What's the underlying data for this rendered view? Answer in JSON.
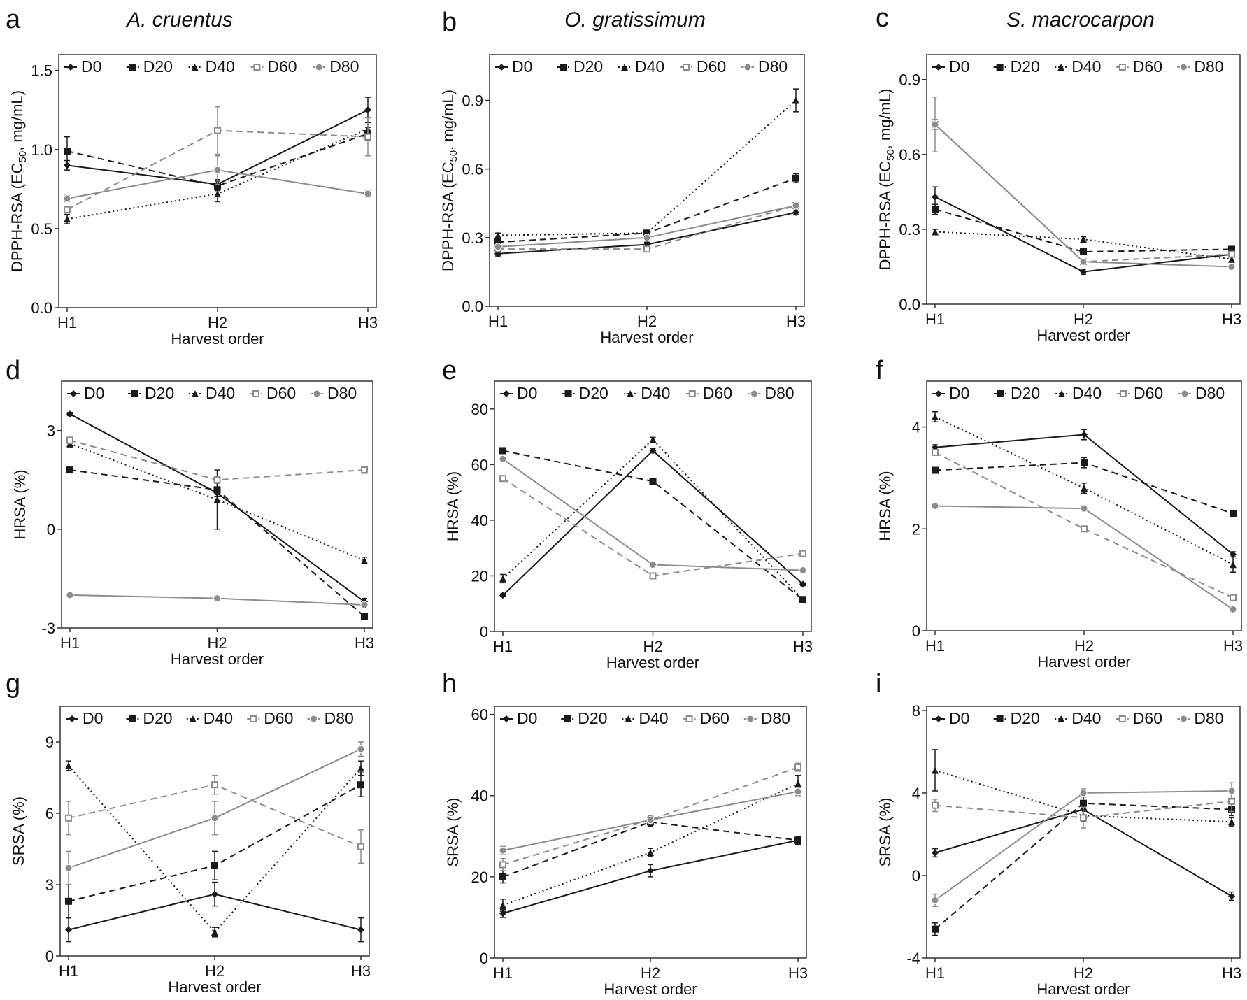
{
  "figure": {
    "species": [
      "A. cruentus",
      "O. gratissimum",
      "S. macrocarpon"
    ]
  },
  "chart_data": [
    {
      "letter": "a",
      "type": "line",
      "title": "A. cruentus",
      "xlabel": "Harvest order",
      "ylabel": "DPPH-RSA (EC",
      "ylabel_sub": "50",
      "ylabel_post": ", mg/mL)",
      "categories": [
        "H1",
        "H2",
        "H3"
      ],
      "ylim": [
        0,
        1.6
      ],
      "yticks": [
        "0.0",
        "0.5",
        "1.0",
        "1.5"
      ],
      "ytick_values": [
        0,
        0.5,
        1.0,
        1.5
      ],
      "series": [
        {
          "name": "D0",
          "values": [
            0.9,
            0.78,
            1.25
          ],
          "errors": [
            0.03,
            0.03,
            0.08
          ]
        },
        {
          "name": "D20",
          "values": [
            0.99,
            0.77,
            1.1
          ],
          "errors": [
            0.09,
            0.03,
            0.04
          ]
        },
        {
          "name": "D40",
          "values": [
            0.56,
            0.72,
            1.13
          ],
          "errors": [
            0.03,
            0.05,
            0.04
          ]
        },
        {
          "name": "D60",
          "values": [
            0.62,
            1.12,
            1.08
          ],
          "errors": [
            0.02,
            0.15,
            0.12
          ]
        },
        {
          "name": "D80",
          "values": [
            0.69,
            0.87,
            0.72
          ],
          "errors": [
            0.02,
            0.09,
            0.02
          ]
        }
      ]
    },
    {
      "letter": "b",
      "type": "line",
      "title": "O. gratissimum",
      "xlabel": "Harvest order",
      "ylabel": "DPPH-RSA (EC",
      "ylabel_sub": "50",
      "ylabel_post": ", mg/mL)",
      "categories": [
        "H1",
        "H2",
        "H3"
      ],
      "ylim": [
        0,
        1.1
      ],
      "yticks": [
        "0.0",
        "0.3",
        "0.6",
        "0.9"
      ],
      "ytick_values": [
        0,
        0.3,
        0.6,
        0.9
      ],
      "series": [
        {
          "name": "D0",
          "values": [
            0.23,
            0.27,
            0.41
          ],
          "errors": [
            0.01,
            0.01,
            0.01
          ]
        },
        {
          "name": "D20",
          "values": [
            0.28,
            0.32,
            0.56
          ],
          "errors": [
            0.01,
            0.01,
            0.02
          ]
        },
        {
          "name": "D40",
          "values": [
            0.31,
            0.32,
            0.9
          ],
          "errors": [
            0.01,
            0.01,
            0.05
          ]
        },
        {
          "name": "D60",
          "values": [
            0.25,
            0.25,
            0.44
          ],
          "errors": [
            0.01,
            0.01,
            0.01
          ]
        },
        {
          "name": "D80",
          "values": [
            0.26,
            0.3,
            0.44
          ],
          "errors": [
            0.01,
            0.01,
            0.01
          ]
        }
      ]
    },
    {
      "letter": "c",
      "type": "line",
      "title": "S. macrocarpon",
      "xlabel": "Harvest order",
      "ylabel": "DPPH-RSA (EC",
      "ylabel_sub": "50",
      "ylabel_post": ", mg/mL)",
      "categories": [
        "H1",
        "H2",
        "H3"
      ],
      "ylim": [
        0,
        1.0
      ],
      "yticks": [
        "0.0",
        "0.3",
        "0.6",
        "0.9"
      ],
      "ytick_values": [
        0,
        0.3,
        0.6,
        0.9
      ],
      "series": [
        {
          "name": "D0",
          "values": [
            0.43,
            0.13,
            0.2
          ],
          "errors": [
            0.04,
            0.01,
            0.01
          ]
        },
        {
          "name": "D20",
          "values": [
            0.38,
            0.21,
            0.22
          ],
          "errors": [
            0.02,
            0.01,
            0.01
          ]
        },
        {
          "name": "D40",
          "values": [
            0.29,
            0.26,
            0.18
          ],
          "errors": [
            0.01,
            0.01,
            0.01
          ]
        },
        {
          "name": "D60",
          "values": [
            0.72,
            0.17,
            0.2
          ],
          "errors": [
            0.11,
            0.01,
            0.01
          ]
        },
        {
          "name": "D80",
          "values": [
            0.72,
            0.17,
            0.15
          ],
          "errors": [
            0.02,
            0.01,
            0.01
          ]
        }
      ]
    },
    {
      "letter": "d",
      "type": "line",
      "xlabel": "Harvest order",
      "ylabel": "HRSA (%)",
      "ylabel_sub": "",
      "ylabel_post": "",
      "categories": [
        "H1",
        "H2",
        "H3"
      ],
      "ylim": [
        -3,
        4.5
      ],
      "yticks": [
        "-3",
        "0",
        "3"
      ],
      "ytick_values": [
        -3,
        0,
        3
      ],
      "series": [
        {
          "name": "D0",
          "values": [
            3.5,
            1.1,
            -2.2
          ],
          "errors": [
            0.05,
            0.3,
            0.1
          ]
        },
        {
          "name": "D20",
          "values": [
            1.8,
            1.2,
            -2.65
          ],
          "errors": [
            0.05,
            0.2,
            0.1
          ]
        },
        {
          "name": "D40",
          "values": [
            2.6,
            0.9,
            -0.95
          ],
          "errors": [
            0.1,
            0.9,
            0.1
          ]
        },
        {
          "name": "D60",
          "values": [
            2.7,
            1.5,
            1.8
          ],
          "errors": [
            0.1,
            0.1,
            0.1
          ]
        },
        {
          "name": "D80",
          "values": [
            -2.0,
            -2.1,
            -2.3
          ],
          "errors": [
            0.05,
            0.05,
            0.05
          ]
        }
      ]
    },
    {
      "letter": "e",
      "type": "line",
      "xlabel": "Harvest order",
      "ylabel": "HRSA (%)",
      "ylabel_sub": "",
      "ylabel_post": "",
      "categories": [
        "H1",
        "H2",
        "H3"
      ],
      "ylim": [
        0,
        90
      ],
      "yticks": [
        "0",
        "20",
        "40",
        "60",
        "80"
      ],
      "ytick_values": [
        0,
        20,
        40,
        60,
        80
      ],
      "series": [
        {
          "name": "D0",
          "values": [
            13,
            65,
            17
          ],
          "errors": [
            0.5,
            0.8,
            0.5
          ]
        },
        {
          "name": "D20",
          "values": [
            65,
            54,
            11.5
          ],
          "errors": [
            0.8,
            0.8,
            0.5
          ]
        },
        {
          "name": "D40",
          "values": [
            19,
            69,
            11.5
          ],
          "errors": [
            1.5,
            0.8,
            0.5
          ]
        },
        {
          "name": "D60",
          "values": [
            55,
            20,
            28
          ],
          "errors": [
            0.8,
            0.5,
            0.8
          ]
        },
        {
          "name": "D80",
          "values": [
            62,
            24,
            22
          ],
          "errors": [
            0.8,
            0.5,
            0.5
          ]
        }
      ]
    },
    {
      "letter": "f",
      "type": "line",
      "xlabel": "Harvest order",
      "ylabel": "HRSA (%)",
      "ylabel_sub": "",
      "ylabel_post": "",
      "categories": [
        "H1",
        "H2",
        "H3"
      ],
      "ylim": [
        0,
        4.9
      ],
      "yticks": [
        "0",
        "2",
        "4"
      ],
      "ytick_values": [
        0,
        2,
        4
      ],
      "series": [
        {
          "name": "D0",
          "values": [
            3.6,
            3.85,
            1.5
          ],
          "errors": [
            0.05,
            0.1,
            0.05
          ]
        },
        {
          "name": "D20",
          "values": [
            3.15,
            3.3,
            2.3
          ],
          "errors": [
            0.05,
            0.1,
            0.05
          ]
        },
        {
          "name": "D40",
          "values": [
            4.2,
            2.8,
            1.3
          ],
          "errors": [
            0.1,
            0.1,
            0.15
          ]
        },
        {
          "name": "D60",
          "values": [
            3.5,
            2.0,
            0.65
          ],
          "errors": [
            0.05,
            0.05,
            0.05
          ]
        },
        {
          "name": "D80",
          "values": [
            2.45,
            2.4,
            0.42
          ],
          "errors": [
            0.05,
            0.05,
            0.05
          ]
        }
      ]
    },
    {
      "letter": "g",
      "type": "line",
      "xlabel": "Harvest order",
      "ylabel": "SRSA (%)",
      "ylabel_sub": "",
      "ylabel_post": "",
      "categories": [
        "H1",
        "H2",
        "H3"
      ],
      "ylim": [
        0,
        10.5
      ],
      "yticks": [
        "0",
        "3",
        "6",
        "9"
      ],
      "ytick_values": [
        0,
        3,
        6,
        9
      ],
      "series": [
        {
          "name": "D0",
          "values": [
            1.1,
            2.6,
            1.1
          ],
          "errors": [
            0.5,
            0.5,
            0.5
          ]
        },
        {
          "name": "D20",
          "values": [
            2.3,
            3.8,
            7.2
          ],
          "errors": [
            0.7,
            0.6,
            0.5
          ]
        },
        {
          "name": "D40",
          "values": [
            8.0,
            1.0,
            7.9
          ],
          "errors": [
            0.2,
            0.2,
            0.3
          ]
        },
        {
          "name": "D60",
          "values": [
            5.8,
            7.2,
            4.6
          ],
          "errors": [
            0.7,
            0.4,
            0.7
          ]
        },
        {
          "name": "D80",
          "values": [
            3.7,
            5.8,
            8.7
          ],
          "errors": [
            0.7,
            0.7,
            0.3
          ]
        }
      ]
    },
    {
      "letter": "h",
      "type": "line",
      "xlabel": "Harvest order",
      "ylabel": "SRSA (%)",
      "ylabel_sub": "",
      "ylabel_post": "",
      "categories": [
        "H1",
        "H2",
        "H3"
      ],
      "ylim": [
        0,
        62
      ],
      "yticks": [
        "0",
        "20",
        "40",
        "60"
      ],
      "ytick_values": [
        0,
        20,
        40,
        60
      ],
      "series": [
        {
          "name": "D0",
          "values": [
            11,
            21.5,
            29
          ],
          "errors": [
            1.0,
            1.5,
            1.0
          ]
        },
        {
          "name": "D20",
          "values": [
            20,
            33.5,
            29
          ],
          "errors": [
            1.5,
            1.0,
            1.0
          ]
        },
        {
          "name": "D40",
          "values": [
            13,
            26,
            43
          ],
          "errors": [
            1.5,
            1.0,
            2.0
          ]
        },
        {
          "name": "D60",
          "values": [
            23,
            34,
            47
          ],
          "errors": [
            1.5,
            1.0,
            1.0
          ]
        },
        {
          "name": "D80",
          "values": [
            26.5,
            34,
            41
          ],
          "errors": [
            1.0,
            1.0,
            1.0
          ]
        }
      ]
    },
    {
      "letter": "i",
      "type": "line",
      "xlabel": "Harvest order",
      "ylabel": "SRSA (%)",
      "ylabel_sub": "",
      "ylabel_post": "",
      "categories": [
        "H1",
        "H2",
        "H3"
      ],
      "ylim": [
        -4,
        8.2
      ],
      "yticks": [
        "-4",
        "0",
        "4",
        "8"
      ],
      "ytick_values": [
        -4,
        0,
        4,
        8
      ],
      "series": [
        {
          "name": "D0",
          "values": [
            1.1,
            3.2,
            -1.0
          ],
          "errors": [
            0.2,
            0.3,
            0.2
          ]
        },
        {
          "name": "D20",
          "values": [
            -2.6,
            3.5,
            3.2
          ],
          "errors": [
            0.3,
            0.3,
            0.3
          ]
        },
        {
          "name": "D40",
          "values": [
            5.1,
            2.9,
            2.6
          ],
          "errors": [
            1.0,
            0.3,
            0.2
          ]
        },
        {
          "name": "D60",
          "values": [
            3.4,
            2.8,
            3.6
          ],
          "errors": [
            0.3,
            0.5,
            0.5
          ]
        },
        {
          "name": "D80",
          "values": [
            -1.2,
            4.0,
            4.1
          ],
          "errors": [
            0.3,
            0.2,
            0.4
          ]
        }
      ]
    }
  ],
  "style": {
    "series_colors": {
      "D0": "#1a1a1a",
      "D20": "#1a1a1a",
      "D40": "#1a1a1a",
      "D60": "#8c8c8c",
      "D80": "#8c8c8c"
    },
    "series_dash": {
      "D0": "solid",
      "D20": "dashed",
      "D40": "dotted",
      "D60": "dashed",
      "D80": "solid"
    },
    "series_markers": {
      "D0": "diamond",
      "D20": "square",
      "D40": "triangle",
      "D60": "open-square",
      "D80": "circle"
    },
    "axis_color": "#333333"
  }
}
